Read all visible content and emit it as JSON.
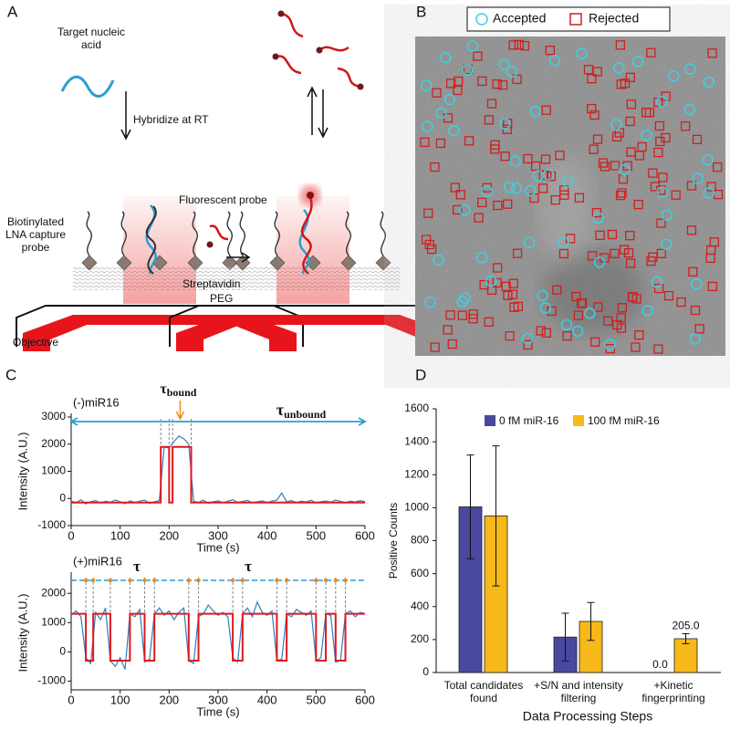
{
  "panel_labels": [
    "A",
    "B",
    "C",
    "D"
  ],
  "diagram": {
    "target_label": "Target nucleic acid",
    "hybridize_label": "Hybridize at RT",
    "fluorescent_probe_label": "Fluorescent probe",
    "capture_probe_label": "Biotinylated LNA capture probe",
    "streptavidin_label": "Streptavidin",
    "peg_label": "PEG",
    "objective_label": "Objective"
  },
  "image_legend": {
    "accepted": "Accepted",
    "accepted_color": "#3dd0e0",
    "rejected": "Rejected",
    "rejected_color": "#d02020"
  },
  "chart_data": [
    {
      "type": "line",
      "label": "(-)miR16",
      "xlabel": "Time (s)",
      "ylabel": "Intensity (A.U.)",
      "xlim": [
        0,
        600
      ],
      "ylim": [
        -1000,
        3000
      ],
      "xticks": [
        0,
        100,
        200,
        300,
        400,
        500,
        600
      ],
      "yticks": [
        -1000,
        0,
        1000,
        2000,
        3000
      ],
      "x": [
        0,
        10,
        20,
        30,
        40,
        50,
        60,
        70,
        80,
        90,
        100,
        110,
        120,
        130,
        140,
        150,
        160,
        170,
        180,
        190,
        200,
        210,
        220,
        230,
        240,
        250,
        260,
        270,
        280,
        290,
        300,
        310,
        320,
        330,
        340,
        350,
        360,
        370,
        380,
        390,
        400,
        410,
        420,
        430,
        440,
        450,
        460,
        470,
        480,
        490,
        500,
        510,
        520,
        530,
        540,
        550,
        560,
        570,
        580,
        590,
        600
      ],
      "series": [
        {
          "color": "#2e7fc2",
          "values": [
            -100,
            -150,
            -50,
            -200,
            -120,
            -80,
            -170,
            -100,
            -140,
            -60,
            -120,
            -190,
            -90,
            -150,
            -100,
            -60,
            -180,
            -120,
            -80,
            1900,
            1850,
            2100,
            2300,
            2200,
            2000,
            -100,
            -150,
            -60,
            -180,
            -120,
            -90,
            -160,
            -100,
            -50,
            -140,
            -110,
            -70,
            -160,
            -120,
            -90,
            -150,
            -100,
            -60,
            200,
            -120,
            -80,
            -150,
            -100,
            -130,
            -70,
            -160,
            -120,
            -90,
            -140,
            -60,
            -110,
            -150,
            -100,
            -130,
            -80,
            -120
          ]
        },
        {
          "color": "#e0181e",
          "x": [
            0,
            183,
            183,
            200,
            200,
            207,
            207,
            245,
            245,
            600
          ],
          "values": [
            -150,
            -150,
            1900,
            1900,
            -150,
            -150,
            1900,
            1900,
            -150,
            -150
          ]
        }
      ],
      "transitions": [
        183,
        200,
        207,
        245
      ],
      "tau_bound": {
        "symbol": "τ",
        "subscript": "bound",
        "color": "#f08c14"
      },
      "tau_unbound": {
        "symbol": "τ",
        "subscript": "unbound",
        "color": "#2aa0d0"
      }
    },
    {
      "type": "line",
      "label": "(+)miR16",
      "xlabel": "Time (s)",
      "ylabel": "Intensity (A.U.)",
      "xlim": [
        0,
        600
      ],
      "ylim": [
        -1300,
        2600
      ],
      "xticks": [
        0,
        100,
        200,
        300,
        400,
        500,
        600
      ],
      "yticks": [
        -1000,
        0,
        1000,
        2000
      ],
      "x": [
        0,
        10,
        20,
        30,
        40,
        50,
        60,
        70,
        80,
        90,
        100,
        110,
        120,
        130,
        140,
        150,
        160,
        170,
        180,
        190,
        200,
        210,
        220,
        230,
        240,
        250,
        260,
        270,
        280,
        290,
        300,
        310,
        320,
        330,
        340,
        350,
        360,
        370,
        380,
        390,
        400,
        410,
        420,
        430,
        440,
        450,
        460,
        470,
        480,
        490,
        500,
        510,
        520,
        530,
        540,
        550,
        560,
        570,
        580,
        590,
        600
      ],
      "series": [
        {
          "color": "#2e7fc2",
          "values": [
            1250,
            1400,
            1200,
            -200,
            -400,
            1350,
            1100,
            1500,
            -300,
            -500,
            -200,
            -600,
            1300,
            1200,
            1450,
            -350,
            -250,
            1300,
            1500,
            1250,
            1400,
            1100,
            1350,
            1500,
            -300,
            -400,
            1200,
            1300,
            1600,
            1400,
            1250,
            1350,
            1200,
            -200,
            -350,
            1300,
            1500,
            1200,
            1700,
            1350,
            1250,
            1400,
            -300,
            -250,
            1300,
            1200,
            1450,
            1350,
            1250,
            1400,
            -300,
            -200,
            1300,
            1250,
            -350,
            -300,
            1300,
            1400,
            1200,
            1350,
            1300
          ]
        },
        {
          "color": "#e0181e",
          "x": [
            0,
            30,
            30,
            45,
            45,
            80,
            80,
            120,
            120,
            150,
            150,
            170,
            170,
            240,
            240,
            260,
            260,
            330,
            330,
            350,
            350,
            420,
            420,
            440,
            440,
            500,
            500,
            520,
            520,
            540,
            540,
            560,
            560,
            600
          ],
          "values": [
            1300,
            1300,
            -300,
            -300,
            1300,
            1300,
            -300,
            -300,
            1300,
            1300,
            -300,
            -300,
            1300,
            1300,
            -300,
            -300,
            1300,
            1300,
            -300,
            -300,
            1300,
            1300,
            -300,
            -300,
            1300,
            1300,
            -300,
            -300,
            1300,
            1300,
            -300,
            -300,
            1300,
            1300
          ]
        }
      ],
      "transitions": [
        30,
        45,
        80,
        120,
        150,
        170,
        240,
        260,
        330,
        350,
        420,
        440,
        500,
        520,
        540,
        560
      ],
      "tau_labels": [
        {
          "symbol": "τ",
          "color": "#2aa0d0"
        },
        {
          "symbol": "τ",
          "color": "#f08c14"
        }
      ]
    },
    {
      "type": "bar",
      "xlabel": "Data Processing Steps",
      "ylabel": "Positive Counts",
      "categories": [
        "Total candidates found",
        "+S/N and intensity filtering",
        "+Kinetic fingerprinting"
      ],
      "ylim": [
        0,
        1600
      ],
      "yticks": [
        0,
        200,
        400,
        600,
        800,
        1000,
        1200,
        1400,
        1600
      ],
      "series": [
        {
          "name": "0 fM miR-16",
          "color": "#4b48a0",
          "values": [
            1005,
            215,
            0
          ],
          "errors": [
            315,
            145,
            0
          ],
          "value_labels": [
            null,
            null,
            "0.0"
          ]
        },
        {
          "name": "100 fM miR-16",
          "color": "#f7b81a",
          "values": [
            950,
            310,
            205
          ],
          "errors": [
            425,
            115,
            30
          ],
          "value_labels": [
            null,
            null,
            "205.0"
          ]
        }
      ]
    }
  ]
}
